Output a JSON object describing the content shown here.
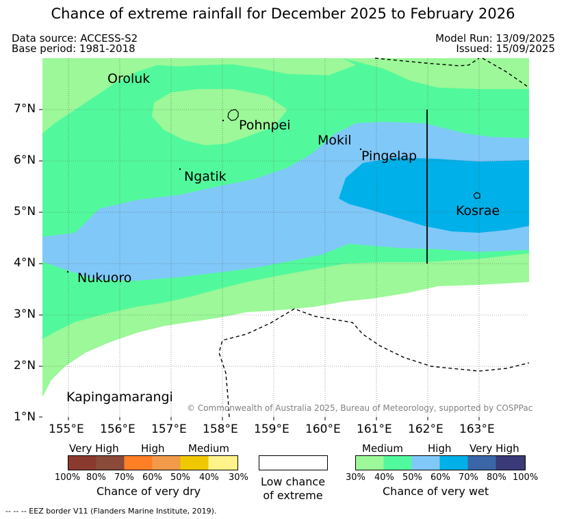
{
  "header": {
    "title": "Chance of extreme rainfall for December 2025 to February 2026",
    "data_source": "Data source: ACCESS-S2",
    "base_period": "Base period: 1981-2018",
    "model_run": "Model Run: 13/09/2025",
    "issued": "Issued: 15/09/2025"
  },
  "map": {
    "lat_ticks": [
      "7°N",
      "6°N",
      "5°N",
      "4°N",
      "3°N",
      "2°N",
      "1°N"
    ],
    "lon_ticks": [
      "155°E",
      "156°E",
      "157°E",
      "158°E",
      "159°E",
      "160°E",
      "161°E",
      "162°E",
      "163°E"
    ],
    "places": {
      "oroluk": "Oroluk",
      "pohnpei": "Pohnpei",
      "mokil": "Mokil",
      "pingelap": "Pingelap",
      "ngatik": "Ngatik",
      "kosrae": "Kosrae",
      "nukuoro": "Nukuoro",
      "kapingamarangi": "Kapingamarangi"
    },
    "copyright": "© Commonwealth of Australia 2025, Bureau of Meteorology, supported by COSPPac"
  },
  "legend": {
    "dry": {
      "levels": [
        "Very High",
        "High",
        "Medium"
      ],
      "colors": [
        "#8b3a2f",
        "#8a4a3a",
        "#ff7f27",
        "#f09a4a",
        "#f0c800",
        "#fff38a"
      ],
      "pcts": [
        "100%",
        "80%",
        "70%",
        "60%",
        "50%",
        "40%",
        "30%"
      ],
      "caption": "Chance of very dry"
    },
    "neutral": {
      "color": "#ffffff",
      "caption_line1": "Low chance",
      "caption_line2": "of extreme"
    },
    "wet": {
      "levels": [
        "Medium",
        "High",
        "Very High"
      ],
      "colors": [
        "#9cf898",
        "#52f99c",
        "#80c8f8",
        "#00b0e8",
        "#3a66a8",
        "#3a3a78"
      ],
      "pcts": [
        "30%",
        "40%",
        "50%",
        "60%",
        "70%",
        "80%",
        "100%"
      ],
      "caption": "Chance of very wet"
    }
  },
  "footnote": "--  --  -- EEZ border V11 (Flanders Marine Institute, 2019)."
}
